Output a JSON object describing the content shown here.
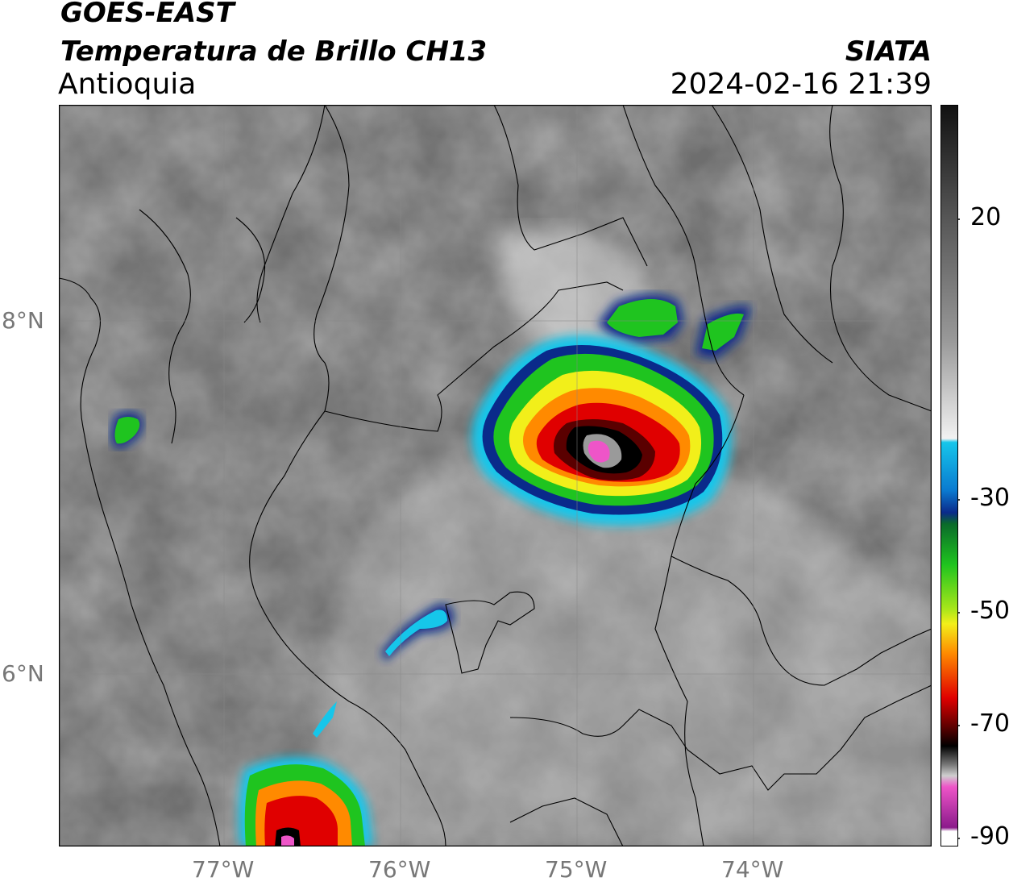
{
  "header": {
    "satellite": "GOES-EAST",
    "product": "Temperatura de Brillo CH13",
    "region": "Antioquia",
    "source": "SIATA",
    "timestamp": "2024-02-16 21:39"
  },
  "map": {
    "longitude_ticks": [
      "77°W",
      "76°W",
      "75°W",
      "74°W"
    ],
    "latitude_ticks": [
      "8°N",
      "6°N"
    ],
    "extent": {
      "lon_min": -77.95,
      "lon_max": -73.0,
      "lat_min": 5.0,
      "lat_max": 9.2
    },
    "gridlines": true
  },
  "colorbar": {
    "ticks": [
      "20",
      "-30",
      "-50",
      "-70",
      "-90"
    ],
    "range": [
      -90,
      40
    ],
    "colors": {
      "warm_dark": "#111111",
      "warm_light": "#f2f2f2",
      "cyan": "#16c6ea",
      "blue": "#0a2a8a",
      "green": "#1fc41f",
      "yellow": "#f2ef1a",
      "orange": "#ff8a00",
      "red": "#e00000",
      "dark_red": "#5a0000",
      "black": "#000000",
      "gray": "#9a9a9a",
      "pink": "#ee55c8",
      "purple": "#8b1a8b"
    }
  }
}
